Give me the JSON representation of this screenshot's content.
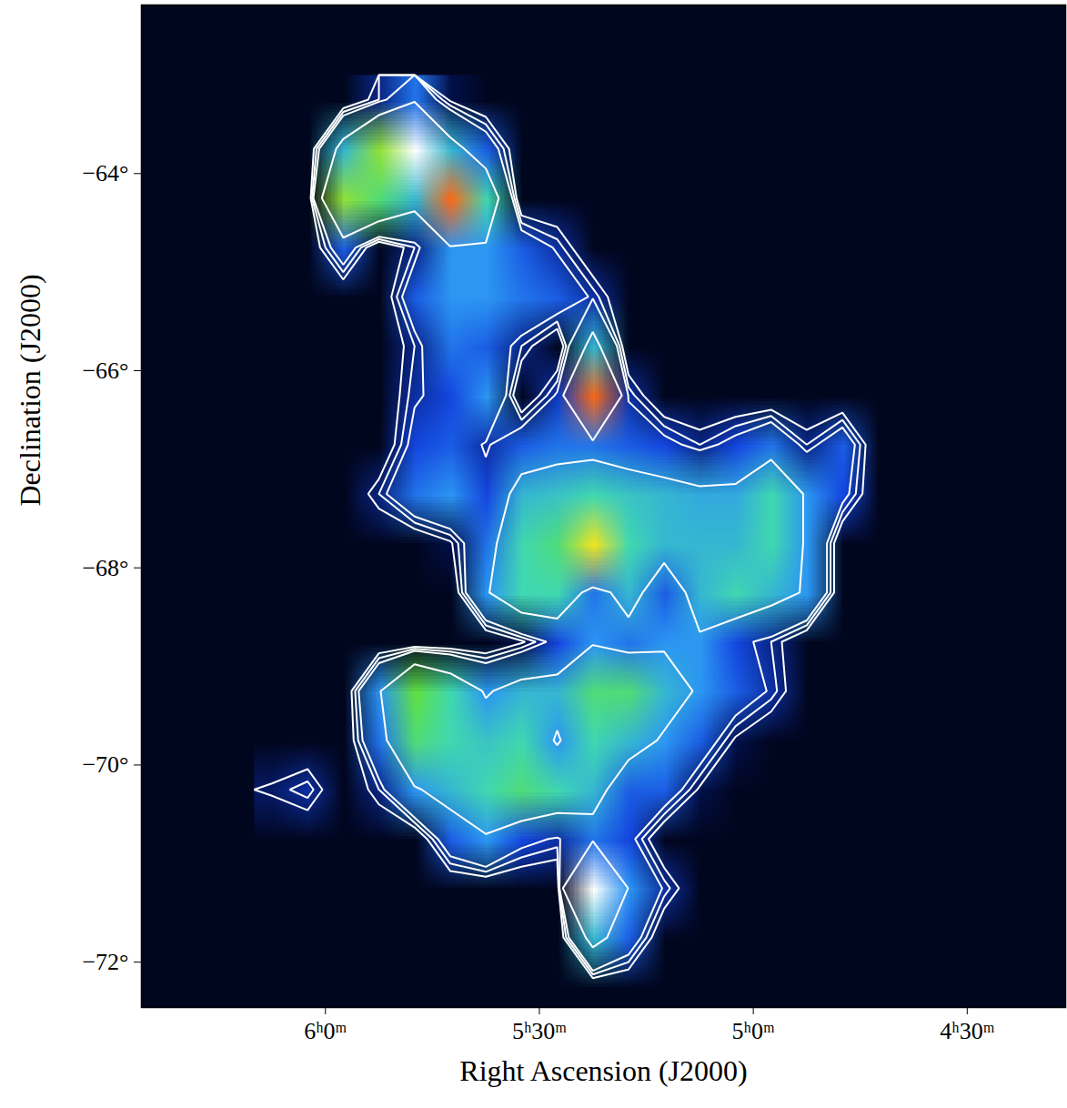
{
  "chart_data": {
    "type": "heatmap",
    "xlabel": "Right Ascension (J2000)",
    "ylabel": "Declination (J2000)",
    "xlim": [
      6.43,
      4.27
    ],
    "ylim": [
      -72.46,
      -62.29
    ],
    "xticks": [
      {
        "value": 6,
        "label": "6ʰ0ᵐ"
      },
      {
        "value": 5.5,
        "label": "5ʰ30ᵐ"
      },
      {
        "value": 5,
        "label": "5ʰ0ᵐ"
      },
      {
        "value": 4.5,
        "label": "4ʰ30ᵐ"
      }
    ],
    "yticks": [
      {
        "value": -64,
        "label": "−64°"
      },
      {
        "value": -66,
        "label": "−66°"
      },
      {
        "value": -68,
        "label": "−68°"
      },
      {
        "value": -70,
        "label": "−70°"
      },
      {
        "value": -72,
        "label": "−72°"
      }
    ],
    "zlim": [
      0,
      10
    ],
    "contour_levels": [
      0.35,
      0.5,
      0.65,
      1.6
    ],
    "cells": {
      "x1": 6.1667,
      "x2": 4.6667,
      "y1": -63,
      "y2": -72.5,
      "values": [
        [
          0,
          0,
          0,
          0.5,
          1.2,
          0.3,
          0,
          0,
          0,
          0,
          0,
          0,
          0,
          0,
          0,
          0,
          0,
          0
        ],
        [
          0,
          0,
          2,
          4,
          10,
          2,
          1,
          0,
          0,
          0,
          0,
          0,
          0,
          0,
          0,
          0,
          0,
          0
        ],
        [
          0,
          0,
          4,
          3,
          2,
          6,
          2.5,
          0,
          0,
          0,
          0,
          0,
          0,
          0,
          0,
          0,
          0,
          0
        ],
        [
          0,
          0,
          1,
          0,
          0.5,
          1.5,
          1.5,
          1,
          0.6,
          0,
          0,
          0,
          0,
          0,
          0,
          0,
          0,
          0
        ],
        [
          0,
          0,
          0,
          0,
          1,
          1.5,
          1.5,
          1.2,
          1,
          0.6,
          0,
          0,
          0,
          0,
          0,
          0,
          0,
          0
        ],
        [
          0,
          0,
          0,
          0,
          0.5,
          1.2,
          1,
          0.5,
          0,
          2,
          0,
          0,
          0,
          0,
          0,
          0,
          0,
          0
        ],
        [
          0,
          0,
          0,
          0,
          0.6,
          0.8,
          1.5,
          0,
          0.7,
          6,
          0.6,
          0,
          0,
          0,
          0,
          0,
          0,
          0
        ],
        [
          0,
          0,
          0,
          0,
          0.8,
          1,
          0.6,
          1,
          1.2,
          1.2,
          1,
          0.8,
          0.5,
          0.8,
          1.2,
          0.5,
          1,
          0
        ],
        [
          0,
          0,
          0,
          0.5,
          1.2,
          1.5,
          0.8,
          2,
          2.2,
          2.5,
          2.2,
          2,
          1.8,
          1.8,
          2.5,
          1.5,
          0.8,
          0
        ],
        [
          0,
          0,
          0,
          0,
          0,
          0.3,
          1.2,
          2.5,
          3,
          5,
          2.5,
          2,
          2,
          2,
          2.5,
          1.5,
          0,
          0
        ],
        [
          0,
          0,
          0,
          0,
          0,
          0,
          1.5,
          2.5,
          2.5,
          1.2,
          2,
          1,
          2,
          2.5,
          2,
          1.5,
          0,
          0
        ],
        [
          0,
          0,
          0,
          0,
          0,
          0,
          0,
          0.3,
          0.8,
          1.5,
          1.2,
          1.5,
          1.5,
          0.8,
          0.5,
          0,
          0,
          0
        ],
        [
          0,
          0,
          0,
          1.5,
          3.5,
          2.5,
          1.5,
          2,
          2,
          3,
          3,
          2,
          1.5,
          1,
          0.6,
          0,
          0,
          0
        ],
        [
          0,
          0,
          0,
          1.2,
          3,
          2.5,
          2.2,
          2.5,
          1.5,
          2.5,
          2,
          1.5,
          1,
          0.3,
          0,
          0,
          0,
          0
        ],
        [
          0.4,
          0.6,
          0,
          0.5,
          1.5,
          2,
          2.5,
          3,
          2.5,
          2,
          1,
          1,
          0.3,
          0,
          0,
          0,
          0,
          0
        ],
        [
          0,
          0,
          0,
          0,
          0,
          1,
          1.5,
          0.8,
          0.6,
          1.2,
          0.8,
          0,
          0,
          0,
          0,
          0,
          0,
          0
        ],
        [
          0,
          0,
          0,
          0,
          0,
          0,
          0,
          0,
          0,
          10,
          1.5,
          0.6,
          0,
          0,
          0,
          0,
          0,
          0
        ],
        [
          0,
          0,
          0,
          0,
          0,
          0,
          0,
          0,
          0,
          2,
          1,
          0,
          0,
          0,
          0,
          0,
          0,
          0
        ],
        [
          0,
          0,
          0,
          0,
          0,
          0,
          0,
          0,
          0,
          0,
          0,
          0,
          0,
          0,
          0,
          0,
          0,
          0
        ]
      ]
    }
  }
}
